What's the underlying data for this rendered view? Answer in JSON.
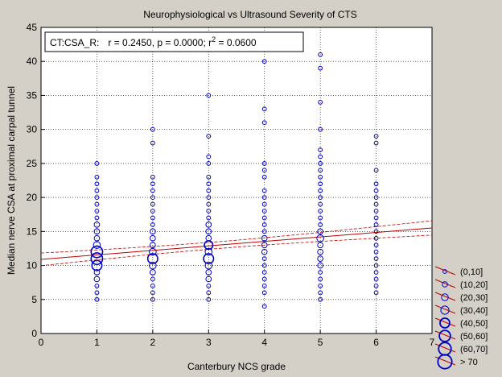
{
  "chart_data": {
    "type": "scatter",
    "title": "Neurophysiological vs Ultrasound Severity of CTS",
    "xlabel": "Canterbury NCS grade",
    "ylabel": "Median nerve CSA at proximal carpal tunnel",
    "xlim": [
      0,
      7
    ],
    "ylim": [
      0,
      45
    ],
    "xticks": [
      "0",
      "1",
      "2",
      "3",
      "4",
      "5",
      "6",
      "7"
    ],
    "yticks": [
      "0",
      "5",
      "10",
      "15",
      "20",
      "25",
      "30",
      "35",
      "40",
      "45"
    ],
    "grid": true,
    "annotation": {
      "label": "CT:CSA_R:",
      "r": "r = 0.2450",
      "p": "p = 0.0000",
      "r2_prefix": "r",
      "r2_sup": "2",
      "r2_value": " = 0.0600"
    },
    "regression": {
      "intercept": 10.9,
      "slope": 0.66
    },
    "bubble_legend": [
      "(0,10]",
      "(10,20]",
      "(20,30]",
      "(30,40]",
      "(40,50]",
      "(50,60]",
      "(60,70]",
      "> 70"
    ],
    "colors": {
      "points": "#0000cc",
      "fit": "#c00000",
      "plot_bg": "#ffffff",
      "frame_bg": "#d4d0c8"
    },
    "points": [
      {
        "x": 1,
        "y": 5,
        "n": 1
      },
      {
        "x": 1,
        "y": 6,
        "n": 1
      },
      {
        "x": 1,
        "y": 7,
        "n": 1
      },
      {
        "x": 1,
        "y": 8,
        "n": 2
      },
      {
        "x": 1,
        "y": 9,
        "n": 2
      },
      {
        "x": 1,
        "y": 10,
        "n": 5
      },
      {
        "x": 1,
        "y": 11,
        "n": 6
      },
      {
        "x": 1,
        "y": 12,
        "n": 6
      },
      {
        "x": 1,
        "y": 13,
        "n": 3
      },
      {
        "x": 1,
        "y": 14,
        "n": 2
      },
      {
        "x": 1,
        "y": 15,
        "n": 2
      },
      {
        "x": 1,
        "y": 16,
        "n": 2
      },
      {
        "x": 1,
        "y": 17,
        "n": 1
      },
      {
        "x": 1,
        "y": 18,
        "n": 1
      },
      {
        "x": 1,
        "y": 19,
        "n": 1
      },
      {
        "x": 1,
        "y": 20,
        "n": 1
      },
      {
        "x": 1,
        "y": 21,
        "n": 1
      },
      {
        "x": 1,
        "y": 22,
        "n": 1
      },
      {
        "x": 1,
        "y": 23,
        "n": 1
      },
      {
        "x": 1,
        "y": 25,
        "n": 1
      },
      {
        "x": 2,
        "y": 5,
        "n": 1
      },
      {
        "x": 2,
        "y": 6,
        "n": 1
      },
      {
        "x": 2,
        "y": 7,
        "n": 1
      },
      {
        "x": 2,
        "y": 8,
        "n": 1
      },
      {
        "x": 2,
        "y": 9,
        "n": 2
      },
      {
        "x": 2,
        "y": 10,
        "n": 3
      },
      {
        "x": 2,
        "y": 11,
        "n": 5
      },
      {
        "x": 2,
        "y": 12,
        "n": 3
      },
      {
        "x": 2,
        "y": 13,
        "n": 2
      },
      {
        "x": 2,
        "y": 14,
        "n": 2
      },
      {
        "x": 2,
        "y": 15,
        "n": 2
      },
      {
        "x": 2,
        "y": 16,
        "n": 1
      },
      {
        "x": 2,
        "y": 17,
        "n": 1
      },
      {
        "x": 2,
        "y": 18,
        "n": 1
      },
      {
        "x": 2,
        "y": 19,
        "n": 1
      },
      {
        "x": 2,
        "y": 20,
        "n": 1
      },
      {
        "x": 2,
        "y": 21,
        "n": 1
      },
      {
        "x": 2,
        "y": 22,
        "n": 1
      },
      {
        "x": 2,
        "y": 23,
        "n": 1
      },
      {
        "x": 2,
        "y": 28,
        "n": 1
      },
      {
        "x": 2,
        "y": 30,
        "n": 1
      },
      {
        "x": 3,
        "y": 5,
        "n": 1
      },
      {
        "x": 3,
        "y": 6,
        "n": 1
      },
      {
        "x": 3,
        "y": 7,
        "n": 1
      },
      {
        "x": 3,
        "y": 8,
        "n": 2
      },
      {
        "x": 3,
        "y": 9,
        "n": 2
      },
      {
        "x": 3,
        "y": 10,
        "n": 3
      },
      {
        "x": 3,
        "y": 11,
        "n": 5
      },
      {
        "x": 3,
        "y": 12,
        "n": 3
      },
      {
        "x": 3,
        "y": 13,
        "n": 4
      },
      {
        "x": 3,
        "y": 14,
        "n": 2
      },
      {
        "x": 3,
        "y": 15,
        "n": 2
      },
      {
        "x": 3,
        "y": 16,
        "n": 2
      },
      {
        "x": 3,
        "y": 17,
        "n": 1
      },
      {
        "x": 3,
        "y": 18,
        "n": 1
      },
      {
        "x": 3,
        "y": 19,
        "n": 1
      },
      {
        "x": 3,
        "y": 20,
        "n": 1
      },
      {
        "x": 3,
        "y": 21,
        "n": 1
      },
      {
        "x": 3,
        "y": 22,
        "n": 1
      },
      {
        "x": 3,
        "y": 23,
        "n": 1
      },
      {
        "x": 3,
        "y": 25,
        "n": 1
      },
      {
        "x": 3,
        "y": 26,
        "n": 1
      },
      {
        "x": 3,
        "y": 29,
        "n": 1
      },
      {
        "x": 3,
        "y": 35,
        "n": 1
      },
      {
        "x": 4,
        "y": 4,
        "n": 1
      },
      {
        "x": 4,
        "y": 6,
        "n": 1
      },
      {
        "x": 4,
        "y": 7,
        "n": 1
      },
      {
        "x": 4,
        "y": 8,
        "n": 1
      },
      {
        "x": 4,
        "y": 9,
        "n": 1
      },
      {
        "x": 4,
        "y": 10,
        "n": 1
      },
      {
        "x": 4,
        "y": 11,
        "n": 1
      },
      {
        "x": 4,
        "y": 12,
        "n": 2
      },
      {
        "x": 4,
        "y": 13,
        "n": 2
      },
      {
        "x": 4,
        "y": 14,
        "n": 2
      },
      {
        "x": 4,
        "y": 15,
        "n": 1
      },
      {
        "x": 4,
        "y": 16,
        "n": 1
      },
      {
        "x": 4,
        "y": 17,
        "n": 1
      },
      {
        "x": 4,
        "y": 18,
        "n": 1
      },
      {
        "x": 4,
        "y": 19,
        "n": 1
      },
      {
        "x": 4,
        "y": 20,
        "n": 1
      },
      {
        "x": 4,
        "y": 21,
        "n": 1
      },
      {
        "x": 4,
        "y": 23,
        "n": 1
      },
      {
        "x": 4,
        "y": 24,
        "n": 1
      },
      {
        "x": 4,
        "y": 25,
        "n": 1
      },
      {
        "x": 4,
        "y": 31,
        "n": 1
      },
      {
        "x": 4,
        "y": 33,
        "n": 1
      },
      {
        "x": 4,
        "y": 40,
        "n": 1
      },
      {
        "x": 5,
        "y": 5,
        "n": 1
      },
      {
        "x": 5,
        "y": 6,
        "n": 1
      },
      {
        "x": 5,
        "y": 7,
        "n": 1
      },
      {
        "x": 5,
        "y": 8,
        "n": 1
      },
      {
        "x": 5,
        "y": 9,
        "n": 1
      },
      {
        "x": 5,
        "y": 10,
        "n": 2
      },
      {
        "x": 5,
        "y": 11,
        "n": 2
      },
      {
        "x": 5,
        "y": 12,
        "n": 2
      },
      {
        "x": 5,
        "y": 13,
        "n": 2
      },
      {
        "x": 5,
        "y": 14,
        "n": 3
      },
      {
        "x": 5,
        "y": 15,
        "n": 2
      },
      {
        "x": 5,
        "y": 16,
        "n": 1
      },
      {
        "x": 5,
        "y": 17,
        "n": 1
      },
      {
        "x": 5,
        "y": 18,
        "n": 1
      },
      {
        "x": 5,
        "y": 19,
        "n": 1
      },
      {
        "x": 5,
        "y": 20,
        "n": 1
      },
      {
        "x": 5,
        "y": 21,
        "n": 1
      },
      {
        "x": 5,
        "y": 22,
        "n": 1
      },
      {
        "x": 5,
        "y": 23,
        "n": 1
      },
      {
        "x": 5,
        "y": 24,
        "n": 1
      },
      {
        "x": 5,
        "y": 25,
        "n": 1
      },
      {
        "x": 5,
        "y": 26,
        "n": 1
      },
      {
        "x": 5,
        "y": 27,
        "n": 1
      },
      {
        "x": 5,
        "y": 30,
        "n": 1
      },
      {
        "x": 5,
        "y": 34,
        "n": 1
      },
      {
        "x": 5,
        "y": 39,
        "n": 1
      },
      {
        "x": 5,
        "y": 41,
        "n": 1
      },
      {
        "x": 6,
        "y": 6,
        "n": 1
      },
      {
        "x": 6,
        "y": 7,
        "n": 1
      },
      {
        "x": 6,
        "y": 8,
        "n": 1
      },
      {
        "x": 6,
        "y": 9,
        "n": 1
      },
      {
        "x": 6,
        "y": 10,
        "n": 1
      },
      {
        "x": 6,
        "y": 11,
        "n": 1
      },
      {
        "x": 6,
        "y": 12,
        "n": 1
      },
      {
        "x": 6,
        "y": 13,
        "n": 1
      },
      {
        "x": 6,
        "y": 14,
        "n": 1
      },
      {
        "x": 6,
        "y": 15,
        "n": 1
      },
      {
        "x": 6,
        "y": 16,
        "n": 1
      },
      {
        "x": 6,
        "y": 17,
        "n": 1
      },
      {
        "x": 6,
        "y": 18,
        "n": 1
      },
      {
        "x": 6,
        "y": 19,
        "n": 1
      },
      {
        "x": 6,
        "y": 20,
        "n": 1
      },
      {
        "x": 6,
        "y": 21,
        "n": 1
      },
      {
        "x": 6,
        "y": 22,
        "n": 1
      },
      {
        "x": 6,
        "y": 24,
        "n": 1
      },
      {
        "x": 6,
        "y": 28,
        "n": 1
      },
      {
        "x": 6,
        "y": 29,
        "n": 1
      }
    ]
  }
}
